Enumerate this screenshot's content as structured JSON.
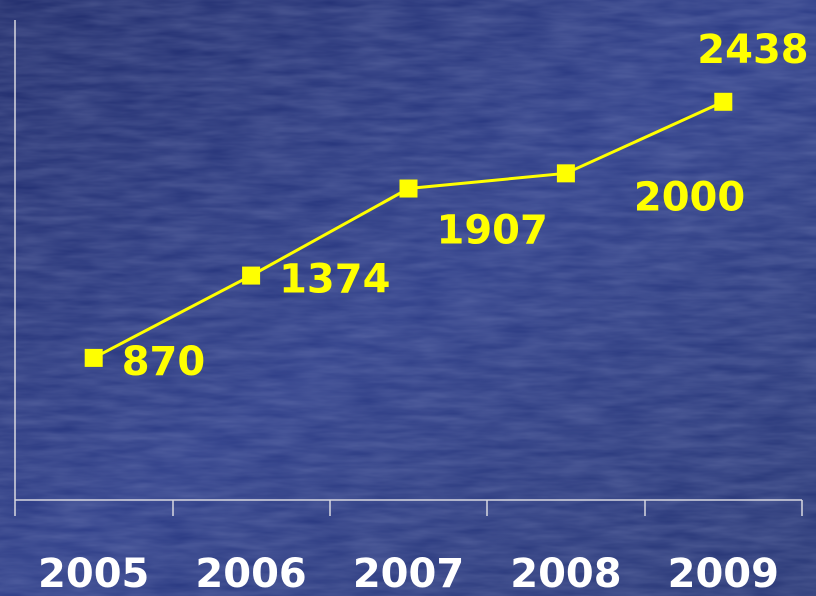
{
  "chart_data": {
    "type": "line",
    "categories": [
      "2005",
      "2006",
      "2007",
      "2008",
      "2009"
    ],
    "series": [
      {
        "color": "#ffff00",
        "values": [
          870,
          1374,
          1907,
          2000,
          2438
        ]
      }
    ],
    "ylim": [
      0,
      3000
    ]
  }
}
